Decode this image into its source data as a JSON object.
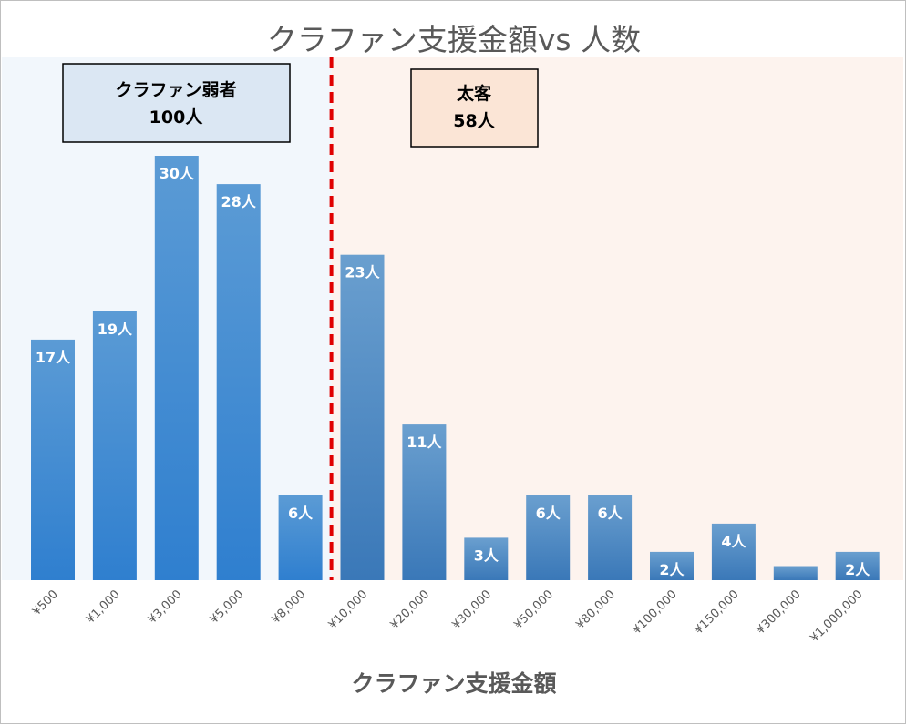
{
  "chart_data": {
    "type": "bar",
    "title": "クラファン支援金額vs 人数",
    "xlabel": "クラファン支援金額",
    "ylabel": "",
    "ylim": [
      0,
      30
    ],
    "categories": [
      "¥500",
      "¥1,000",
      "¥3,000",
      "¥5,000",
      "¥8,000",
      "¥10,000",
      "¥20,000",
      "¥30,000",
      "¥50,000",
      "¥80,000",
      "¥100,000",
      "¥150,000",
      "¥300,000",
      "¥1,000,000"
    ],
    "series": [
      {
        "values": [
          17,
          19,
          30,
          28,
          6,
          23,
          11,
          3,
          6,
          6,
          2,
          4,
          1,
          2
        ],
        "labels": [
          "17人",
          "19人",
          "30人",
          "28人",
          "6人",
          "23人",
          "11人",
          "3人",
          "6人",
          "6人",
          "2人",
          "4人",
          "",
          "2人"
        ]
      }
    ],
    "grid": false,
    "legend": "none",
    "divider_between": [
      "¥8,000",
      "¥10,000"
    ],
    "groups": [
      {
        "name": "クラファン弱者",
        "count": "100人",
        "categories_from": 0,
        "categories_to": 4
      },
      {
        "name": "太客",
        "count": "58人",
        "categories_from": 5,
        "categories_to": 13
      }
    ],
    "colors": {
      "bar_light": "#5b9bd5",
      "bar_dark": "#2e75b6",
      "divider": "#e00000",
      "group1_bg": "#f2f7fc",
      "group1_box": "#dbe7f3",
      "group2_bg": "#fdf3ee",
      "group2_box": "#fbe5d6",
      "label_text": "#ffffff",
      "axis_text": "#595959"
    }
  }
}
